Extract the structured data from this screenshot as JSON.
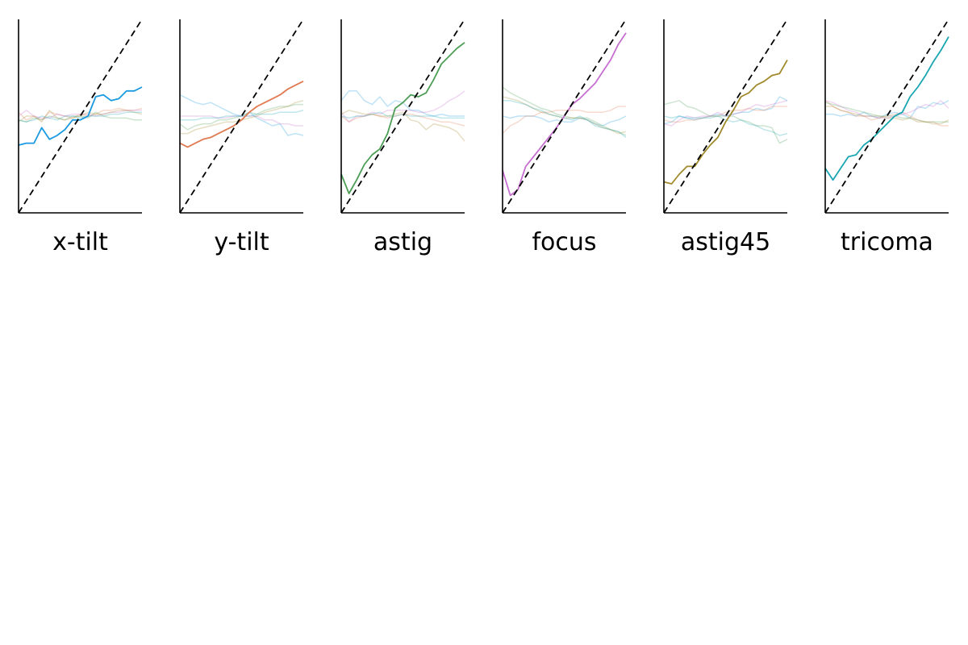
{
  "figure": {
    "panels": [
      "x-tilt",
      "y-tilt",
      "astig",
      "focus",
      "astig45",
      "tricoma"
    ]
  },
  "chart_data": {
    "type": "line",
    "layout": "small-multiples",
    "xlim": [
      0,
      16
    ],
    "ylim": [
      0,
      1
    ],
    "reference_line": {
      "style": "dashed",
      "color": "#000000",
      "x": [
        0,
        16
      ],
      "y": [
        0,
        1
      ]
    },
    "grid": false,
    "panels": [
      {
        "label": "x-tilt",
        "highlight_index": 0,
        "series": [
          {
            "color": "#1a9ae0",
            "values": [
              0.35,
              0.36,
              0.36,
              0.44,
              0.38,
              0.4,
              0.43,
              0.48,
              0.48,
              0.5,
              0.6,
              0.61,
              0.58,
              0.59,
              0.63,
              0.63,
              0.65
            ]
          },
          {
            "color": "#e07a52",
            "values": [
              0.52,
              0.48,
              0.5,
              0.48,
              0.52,
              0.51,
              0.5,
              0.49,
              0.51,
              0.5,
              0.51,
              0.53,
              0.53,
              0.54,
              0.53,
              0.53,
              0.54
            ]
          },
          {
            "color": "#4c9e57",
            "values": [
              0.48,
              0.47,
              0.49,
              0.48,
              0.5,
              0.49,
              0.48,
              0.5,
              0.5,
              0.49,
              0.52,
              0.5,
              0.49,
              0.49,
              0.49,
              0.48,
              0.48
            ]
          },
          {
            "color": "#c66fd0",
            "values": [
              0.5,
              0.53,
              0.5,
              0.49,
              0.49,
              0.51,
              0.5,
              0.51,
              0.51,
              0.51,
              0.5,
              0.51,
              0.52,
              0.52,
              0.53,
              0.53,
              0.53
            ]
          },
          {
            "color": "#a08a2c",
            "values": [
              0.47,
              0.5,
              0.5,
              0.47,
              0.53,
              0.49,
              0.48,
              0.49,
              0.5,
              0.52,
              0.51,
              0.51,
              0.52,
              0.53,
              0.53,
              0.52,
              0.51
            ]
          },
          {
            "color": "#19a6b2",
            "values": [
              0.48,
              0.47,
              0.48,
              0.5,
              0.49,
              0.48,
              0.5,
              0.5,
              0.49,
              0.5,
              0.5,
              0.5,
              0.51,
              0.51,
              0.52,
              0.52,
              0.52
            ]
          }
        ]
      },
      {
        "label": "y-tilt",
        "highlight_index": 1,
        "series": [
          {
            "color": "#1a9ae0",
            "values": [
              0.61,
              0.59,
              0.57,
              0.56,
              0.57,
              0.55,
              0.53,
              0.51,
              0.5,
              0.52,
              0.49,
              0.47,
              0.45,
              0.46,
              0.4,
              0.41,
              0.4
            ]
          },
          {
            "color": "#e07a52",
            "values": [
              0.36,
              0.34,
              0.36,
              0.38,
              0.39,
              0.41,
              0.43,
              0.45,
              0.48,
              0.52,
              0.55,
              0.57,
              0.59,
              0.61,
              0.64,
              0.66,
              0.68
            ]
          },
          {
            "color": "#4c9e57",
            "values": [
              0.46,
              0.43,
              0.45,
              0.46,
              0.46,
              0.48,
              0.48,
              0.49,
              0.5,
              0.52,
              0.51,
              0.53,
              0.54,
              0.55,
              0.55,
              0.56,
              0.56
            ]
          },
          {
            "color": "#c66fd0",
            "values": [
              0.5,
              0.5,
              0.5,
              0.5,
              0.5,
              0.49,
              0.49,
              0.5,
              0.5,
              0.5,
              0.5,
              0.48,
              0.48,
              0.46,
              0.46,
              0.45,
              0.45
            ]
          },
          {
            "color": "#a08a2c",
            "values": [
              0.41,
              0.41,
              0.43,
              0.44,
              0.45,
              0.46,
              0.47,
              0.47,
              0.48,
              0.49,
              0.5,
              0.52,
              0.53,
              0.54,
              0.55,
              0.57,
              0.58
            ]
          },
          {
            "color": "#19a6b2",
            "values": [
              0.48,
              0.48,
              0.48,
              0.49,
              0.49,
              0.49,
              0.5,
              0.5,
              0.5,
              0.5,
              0.51,
              0.51,
              0.51,
              0.52,
              0.52,
              0.52,
              0.53
            ]
          }
        ]
      },
      {
        "label": "astig",
        "highlight_index": 2,
        "series": [
          {
            "color": "#1a9ae0",
            "values": [
              0.58,
              0.63,
              0.63,
              0.58,
              0.56,
              0.6,
              0.55,
              0.58,
              0.57,
              0.53,
              0.53,
              0.51,
              0.5,
              0.51,
              0.5,
              0.5,
              0.5
            ]
          },
          {
            "color": "#e07a52",
            "values": [
              0.5,
              0.47,
              0.49,
              0.5,
              0.51,
              0.5,
              0.49,
              0.5,
              0.51,
              0.51,
              0.5,
              0.49,
              0.48,
              0.47,
              0.47,
              0.46,
              0.45
            ]
          },
          {
            "color": "#4c9e57",
            "values": [
              0.2,
              0.1,
              0.17,
              0.25,
              0.3,
              0.33,
              0.41,
              0.54,
              0.57,
              0.61,
              0.6,
              0.62,
              0.69,
              0.77,
              0.81,
              0.85,
              0.88
            ]
          },
          {
            "color": "#c66fd0",
            "values": [
              0.52,
              0.47,
              0.5,
              0.5,
              0.52,
              0.51,
              0.53,
              0.53,
              0.53,
              0.53,
              0.52,
              0.52,
              0.53,
              0.55,
              0.58,
              0.6,
              0.63
            ]
          },
          {
            "color": "#a08a2c",
            "values": [
              0.51,
              0.53,
              0.52,
              0.51,
              0.51,
              0.5,
              0.5,
              0.51,
              0.52,
              0.48,
              0.47,
              0.43,
              0.46,
              0.45,
              0.44,
              0.42,
              0.37
            ]
          },
          {
            "color": "#19a6b2",
            "values": [
              0.5,
              0.49,
              0.5,
              0.5,
              0.51,
              0.52,
              0.5,
              0.5,
              0.51,
              0.5,
              0.5,
              0.5,
              0.5,
              0.49,
              0.49,
              0.49,
              0.49
            ]
          }
        ]
      },
      {
        "label": "focus",
        "highlight_index": 3,
        "series": [
          {
            "color": "#1a9ae0",
            "values": [
              0.5,
              0.49,
              0.5,
              0.5,
              0.5,
              0.49,
              0.47,
              0.48,
              0.47,
              0.47,
              0.49,
              0.48,
              0.46,
              0.45,
              0.47,
              0.48,
              0.5
            ]
          },
          {
            "color": "#e07a52",
            "values": [
              0.41,
              0.45,
              0.47,
              0.5,
              0.5,
              0.52,
              0.52,
              0.53,
              0.53,
              0.53,
              0.53,
              0.52,
              0.52,
              0.52,
              0.53,
              0.55,
              0.55
            ]
          },
          {
            "color": "#4c9e57",
            "values": [
              0.65,
              0.62,
              0.6,
              0.58,
              0.56,
              0.54,
              0.53,
              0.51,
              0.5,
              0.49,
              0.49,
              0.49,
              0.47,
              0.45,
              0.43,
              0.42,
              0.4
            ]
          },
          {
            "color": "#c66fd0",
            "values": [
              0.22,
              0.09,
              0.12,
              0.24,
              0.29,
              0.34,
              0.39,
              0.44,
              0.5,
              0.56,
              0.59,
              0.63,
              0.67,
              0.73,
              0.79,
              0.87,
              0.93
            ]
          },
          {
            "color": "#a08a2c",
            "values": [
              0.6,
              0.59,
              0.58,
              0.56,
              0.54,
              0.52,
              0.51,
              0.5,
              0.49,
              0.49,
              0.49,
              0.48,
              0.46,
              0.44,
              0.43,
              0.41,
              0.42
            ]
          },
          {
            "color": "#19a6b2",
            "values": [
              0.58,
              0.58,
              0.57,
              0.56,
              0.54,
              0.53,
              0.51,
              0.5,
              0.49,
              0.48,
              0.5,
              0.48,
              0.45,
              0.44,
              0.43,
              0.42,
              0.39
            ]
          }
        ]
      },
      {
        "label": "astig45",
        "highlight_index": 4,
        "series": [
          {
            "color": "#1a9ae0",
            "values": [
              0.46,
              0.47,
              0.5,
              0.49,
              0.48,
              0.49,
              0.5,
              0.51,
              0.5,
              0.51,
              0.52,
              0.52,
              0.54,
              0.53,
              0.54,
              0.6,
              0.58
            ]
          },
          {
            "color": "#e07a52",
            "values": [
              0.48,
              0.47,
              0.47,
              0.48,
              0.48,
              0.49,
              0.5,
              0.5,
              0.52,
              0.53,
              0.53,
              0.54,
              0.53,
              0.53,
              0.55,
              0.55,
              0.55
            ]
          },
          {
            "color": "#4c9e57",
            "values": [
              0.56,
              0.57,
              0.58,
              0.55,
              0.54,
              0.52,
              0.5,
              0.5,
              0.5,
              0.5,
              0.48,
              0.47,
              0.45,
              0.45,
              0.44,
              0.36,
              0.38
            ]
          },
          {
            "color": "#c66fd0",
            "values": [
              0.46,
              0.45,
              0.48,
              0.5,
              0.49,
              0.5,
              0.5,
              0.52,
              0.5,
              0.51,
              0.52,
              0.54,
              0.56,
              0.55,
              0.56,
              0.57,
              0.58
            ]
          },
          {
            "color": "#a08a2c",
            "values": [
              0.16,
              0.15,
              0.2,
              0.24,
              0.24,
              0.3,
              0.35,
              0.39,
              0.47,
              0.53,
              0.6,
              0.62,
              0.66,
              0.68,
              0.71,
              0.72,
              0.79
            ]
          },
          {
            "color": "#19a6b2",
            "values": [
              0.5,
              0.49,
              0.5,
              0.49,
              0.49,
              0.49,
              0.49,
              0.5,
              0.48,
              0.47,
              0.48,
              0.46,
              0.45,
              0.43,
              0.42,
              0.4,
              0.41
            ]
          }
        ]
      },
      {
        "label": "tricoma",
        "highlight_index": 5,
        "series": [
          {
            "color": "#1a9ae0",
            "values": [
              0.51,
              0.51,
              0.5,
              0.51,
              0.5,
              0.52,
              0.5,
              0.49,
              0.51,
              0.52,
              0.51,
              0.49,
              0.55,
              0.54,
              0.57,
              0.56,
              0.58
            ]
          },
          {
            "color": "#e07a52",
            "values": [
              0.58,
              0.55,
              0.53,
              0.52,
              0.5,
              0.5,
              0.48,
              0.49,
              0.5,
              0.51,
              0.52,
              0.5,
              0.48,
              0.47,
              0.47,
              0.45,
              0.45
            ]
          },
          {
            "color": "#4c9e57",
            "values": [
              0.57,
              0.56,
              0.55,
              0.54,
              0.53,
              0.52,
              0.51,
              0.5,
              0.5,
              0.5,
              0.49,
              0.49,
              0.48,
              0.47,
              0.47,
              0.47,
              0.47
            ]
          },
          {
            "color": "#c66fd0",
            "values": [
              0.58,
              0.57,
              0.55,
              0.53,
              0.52,
              0.5,
              0.5,
              0.49,
              0.49,
              0.5,
              0.51,
              0.52,
              0.54,
              0.56,
              0.55,
              0.58,
              0.54
            ]
          },
          {
            "color": "#a08a2c",
            "values": [
              0.55,
              0.55,
              0.53,
              0.52,
              0.51,
              0.5,
              0.5,
              0.5,
              0.49,
              0.49,
              0.48,
              0.49,
              0.47,
              0.47,
              0.46,
              0.46,
              0.48
            ]
          },
          {
            "color": "#19a6b2",
            "values": [
              0.23,
              0.17,
              0.23,
              0.29,
              0.3,
              0.35,
              0.38,
              0.42,
              0.46,
              0.5,
              0.52,
              0.6,
              0.65,
              0.71,
              0.78,
              0.84,
              0.91
            ]
          }
        ]
      }
    ]
  }
}
